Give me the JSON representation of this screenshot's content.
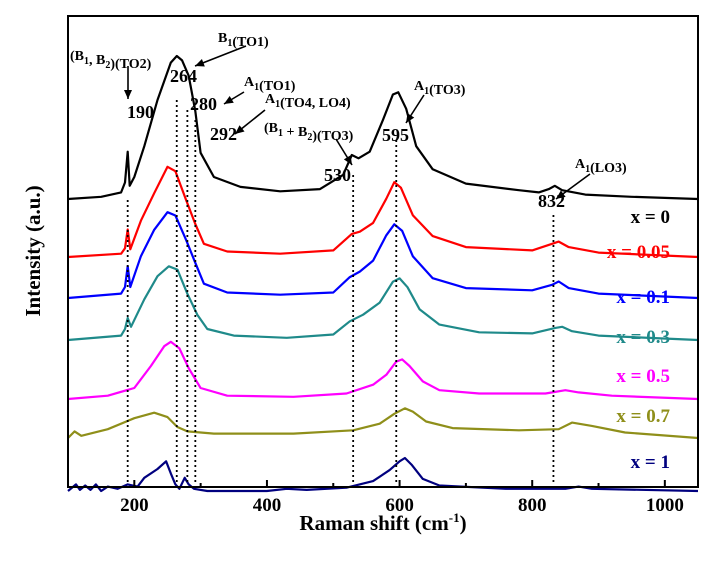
{
  "chart_data": {
    "type": "line",
    "xlabel": "Raman shift (cm",
    "xlabel_sup": "-1",
    "xlabel_end": ")",
    "ylabel": "Intensity (a.u.)",
    "xlim": [
      100,
      1050
    ],
    "xticks": [
      200,
      400,
      600,
      800,
      1000
    ],
    "xtick_labels": [
      "200",
      "400",
      "600",
      "800",
      "1000"
    ],
    "peak_lines": [
      190,
      264,
      280,
      292,
      530,
      595,
      832
    ],
    "annotations": [
      {
        "label": "(B1, B2)(TO2)",
        "parts": [
          "(B",
          "1",
          ", B",
          "2",
          ")(TO2)"
        ],
        "number": "190",
        "peak": 190
      },
      {
        "label": "B1(TO1)",
        "parts": [
          "B",
          "1",
          "(TO1)"
        ],
        "number": "264",
        "peak": 264
      },
      {
        "label": "A1(TO1)",
        "parts": [
          "A",
          "1",
          "(TO1)"
        ],
        "number": "280",
        "peak": 280
      },
      {
        "label": "A1(TO4, LO4)",
        "parts": [
          "A",
          "1",
          "(TO4, LO4)"
        ],
        "number": "292",
        "peak": 292
      },
      {
        "label": "(B1 + B2)(TO3)",
        "parts": [
          "(B",
          "1",
          " + B",
          "2",
          ")(TO3)"
        ],
        "number": "530",
        "peak": 530
      },
      {
        "label": "A1(TO3)",
        "parts": [
          "A",
          "1",
          "(TO3)"
        ],
        "number": "595",
        "peak": 595
      },
      {
        "label": "A1(LO3)",
        "parts": [
          "A",
          "1",
          "(LO3)"
        ],
        "number": "832",
        "peak": 832
      }
    ],
    "series": [
      {
        "name": "x = 0",
        "color": "#000000",
        "baseline": 0.0,
        "points": [
          [
            100,
            0.0
          ],
          [
            150,
            0.02
          ],
          [
            180,
            0.06
          ],
          [
            186,
            0.15
          ],
          [
            190,
            0.43
          ],
          [
            193,
            0.12
          ],
          [
            200,
            0.2
          ],
          [
            215,
            0.48
          ],
          [
            235,
            0.9
          ],
          [
            255,
            1.24
          ],
          [
            264,
            1.3
          ],
          [
            272,
            1.26
          ],
          [
            282,
            1.12
          ],
          [
            292,
            0.8
          ],
          [
            300,
            0.42
          ],
          [
            320,
            0.2
          ],
          [
            360,
            0.11
          ],
          [
            420,
            0.07
          ],
          [
            480,
            0.09
          ],
          [
            515,
            0.22
          ],
          [
            528,
            0.4
          ],
          [
            538,
            0.37
          ],
          [
            555,
            0.43
          ],
          [
            575,
            0.72
          ],
          [
            590,
            0.95
          ],
          [
            598,
            0.97
          ],
          [
            610,
            0.82
          ],
          [
            625,
            0.48
          ],
          [
            650,
            0.27
          ],
          [
            700,
            0.14
          ],
          [
            780,
            0.08
          ],
          [
            810,
            0.06
          ],
          [
            825,
            0.09
          ],
          [
            834,
            0.12
          ],
          [
            845,
            0.08
          ],
          [
            880,
            0.04
          ],
          [
            950,
            0.02
          ],
          [
            1050,
            0.0
          ]
        ]
      },
      {
        "name": "x = 0.05",
        "color": "#ff0000",
        "baseline": 0.0,
        "points": [
          [
            100,
            0.0
          ],
          [
            180,
            0.03
          ],
          [
            186,
            0.08
          ],
          [
            190,
            0.25
          ],
          [
            194,
            0.07
          ],
          [
            210,
            0.33
          ],
          [
            230,
            0.58
          ],
          [
            250,
            0.82
          ],
          [
            262,
            0.78
          ],
          [
            278,
            0.52
          ],
          [
            292,
            0.3
          ],
          [
            305,
            0.12
          ],
          [
            340,
            0.05
          ],
          [
            420,
            0.03
          ],
          [
            500,
            0.06
          ],
          [
            528,
            0.21
          ],
          [
            540,
            0.23
          ],
          [
            560,
            0.31
          ],
          [
            580,
            0.53
          ],
          [
            592,
            0.68
          ],
          [
            602,
            0.63
          ],
          [
            620,
            0.38
          ],
          [
            650,
            0.19
          ],
          [
            700,
            0.09
          ],
          [
            800,
            0.06
          ],
          [
            830,
            0.12
          ],
          [
            840,
            0.14
          ],
          [
            855,
            0.09
          ],
          [
            900,
            0.04
          ],
          [
            1050,
            0.0
          ]
        ]
      },
      {
        "name": "x = 0.1",
        "color": "#0000ff",
        "baseline": 0.0,
        "points": [
          [
            100,
            0.0
          ],
          [
            180,
            0.04
          ],
          [
            186,
            0.1
          ],
          [
            190,
            0.29
          ],
          [
            194,
            0.1
          ],
          [
            210,
            0.38
          ],
          [
            230,
            0.62
          ],
          [
            250,
            0.78
          ],
          [
            262,
            0.75
          ],
          [
            278,
            0.53
          ],
          [
            292,
            0.32
          ],
          [
            305,
            0.13
          ],
          [
            340,
            0.05
          ],
          [
            420,
            0.03
          ],
          [
            500,
            0.05
          ],
          [
            525,
            0.19
          ],
          [
            540,
            0.24
          ],
          [
            560,
            0.34
          ],
          [
            580,
            0.57
          ],
          [
            592,
            0.67
          ],
          [
            604,
            0.61
          ],
          [
            620,
            0.38
          ],
          [
            650,
            0.18
          ],
          [
            700,
            0.09
          ],
          [
            800,
            0.07
          ],
          [
            830,
            0.12
          ],
          [
            840,
            0.15
          ],
          [
            855,
            0.09
          ],
          [
            900,
            0.04
          ],
          [
            1050,
            0.0
          ]
        ]
      },
      {
        "name": "x = 0.3",
        "color": "#1f8a8a",
        "baseline": 0.0,
        "points": [
          [
            100,
            0.0
          ],
          [
            180,
            0.04
          ],
          [
            186,
            0.1
          ],
          [
            190,
            0.2
          ],
          [
            195,
            0.12
          ],
          [
            215,
            0.37
          ],
          [
            235,
            0.58
          ],
          [
            252,
            0.67
          ],
          [
            265,
            0.64
          ],
          [
            280,
            0.42
          ],
          [
            295,
            0.23
          ],
          [
            310,
            0.1
          ],
          [
            350,
            0.04
          ],
          [
            430,
            0.02
          ],
          [
            500,
            0.05
          ],
          [
            525,
            0.17
          ],
          [
            545,
            0.23
          ],
          [
            570,
            0.34
          ],
          [
            590,
            0.53
          ],
          [
            600,
            0.56
          ],
          [
            612,
            0.48
          ],
          [
            630,
            0.28
          ],
          [
            660,
            0.14
          ],
          [
            720,
            0.07
          ],
          [
            800,
            0.06
          ],
          [
            835,
            0.11
          ],
          [
            845,
            0.12
          ],
          [
            860,
            0.08
          ],
          [
            900,
            0.04
          ],
          [
            1050,
            0.0
          ]
        ]
      },
      {
        "name": "x = 0.5",
        "color": "#ff00ff",
        "baseline": 0.0,
        "points": [
          [
            100,
            0.0
          ],
          [
            160,
            0.03
          ],
          [
            200,
            0.1
          ],
          [
            225,
            0.3
          ],
          [
            245,
            0.48
          ],
          [
            255,
            0.52
          ],
          [
            268,
            0.46
          ],
          [
            282,
            0.28
          ],
          [
            300,
            0.1
          ],
          [
            340,
            0.03
          ],
          [
            440,
            0.02
          ],
          [
            520,
            0.05
          ],
          [
            560,
            0.13
          ],
          [
            580,
            0.22
          ],
          [
            595,
            0.34
          ],
          [
            604,
            0.36
          ],
          [
            615,
            0.3
          ],
          [
            635,
            0.16
          ],
          [
            660,
            0.08
          ],
          [
            720,
            0.05
          ],
          [
            820,
            0.05
          ],
          [
            850,
            0.08
          ],
          [
            870,
            0.06
          ],
          [
            920,
            0.03
          ],
          [
            1050,
            0.0
          ]
        ]
      },
      {
        "name": "x = 0.7",
        "color": "#8f8f1a",
        "baseline": 0.0,
        "points": [
          [
            100,
            0.0
          ],
          [
            110,
            0.06
          ],
          [
            120,
            0.02
          ],
          [
            160,
            0.08
          ],
          [
            200,
            0.18
          ],
          [
            230,
            0.23
          ],
          [
            250,
            0.19
          ],
          [
            265,
            0.1
          ],
          [
            280,
            0.06
          ],
          [
            320,
            0.04
          ],
          [
            440,
            0.04
          ],
          [
            530,
            0.07
          ],
          [
            570,
            0.13
          ],
          [
            592,
            0.22
          ],
          [
            608,
            0.27
          ],
          [
            620,
            0.24
          ],
          [
            640,
            0.15
          ],
          [
            680,
            0.09
          ],
          [
            780,
            0.07
          ],
          [
            840,
            0.08
          ],
          [
            860,
            0.14
          ],
          [
            890,
            0.11
          ],
          [
            940,
            0.05
          ],
          [
            1050,
            0.0
          ]
        ]
      },
      {
        "name": "x = 1",
        "color": "#00007f",
        "baseline": 0.0,
        "points": [
          [
            100,
            0.0
          ],
          [
            112,
            0.06
          ],
          [
            118,
            0.01
          ],
          [
            126,
            0.05
          ],
          [
            134,
            0.01
          ],
          [
            142,
            0.06
          ],
          [
            150,
            0.0
          ],
          [
            160,
            0.04
          ],
          [
            175,
            0.02
          ],
          [
            190,
            0.06
          ],
          [
            205,
            0.04
          ],
          [
            215,
            0.12
          ],
          [
            235,
            0.2
          ],
          [
            248,
            0.27
          ],
          [
            255,
            0.16
          ],
          [
            262,
            0.06
          ],
          [
            268,
            0.02
          ],
          [
            276,
            0.12
          ],
          [
            282,
            0.06
          ],
          [
            290,
            0.02
          ],
          [
            310,
            0.0
          ],
          [
            400,
            0.0
          ],
          [
            430,
            0.02
          ],
          [
            460,
            0.01
          ],
          [
            520,
            0.03
          ],
          [
            560,
            0.09
          ],
          [
            585,
            0.19
          ],
          [
            600,
            0.27
          ],
          [
            608,
            0.3
          ],
          [
            618,
            0.24
          ],
          [
            635,
            0.11
          ],
          [
            660,
            0.05
          ],
          [
            760,
            0.02
          ],
          [
            850,
            0.02
          ],
          [
            870,
            0.04
          ],
          [
            890,
            0.02
          ],
          [
            1050,
            0.0
          ]
        ]
      }
    ]
  }
}
